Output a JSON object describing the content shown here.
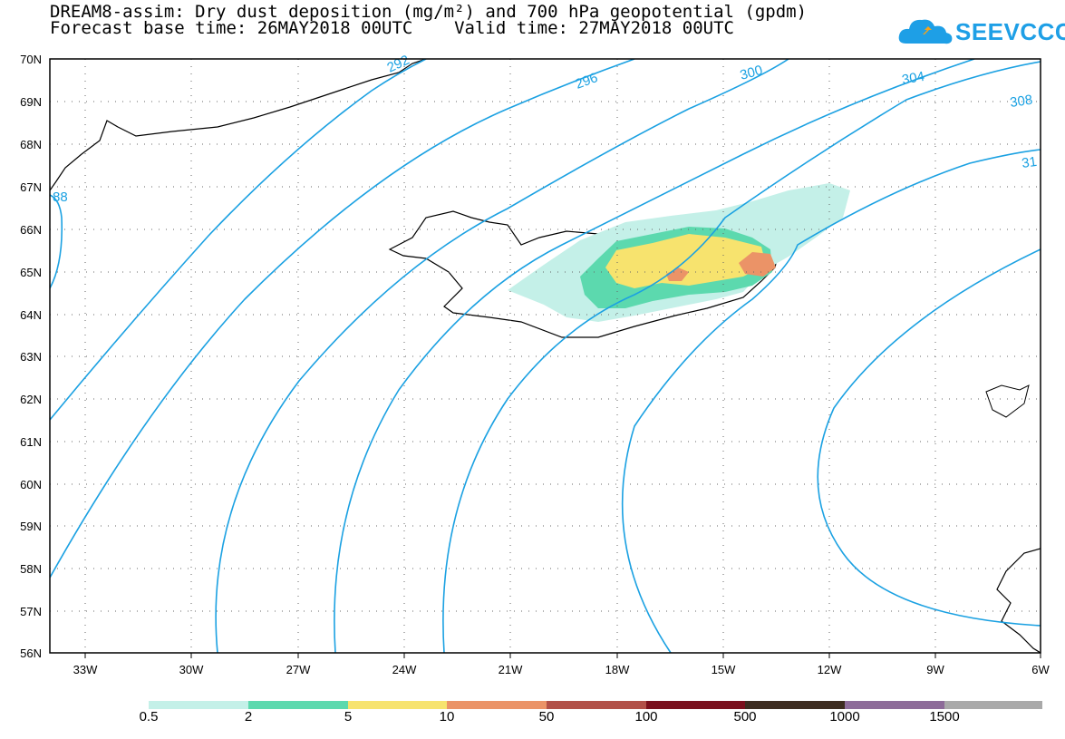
{
  "header": {
    "title_line1": "DREAM8-assim: Dry dust deposition (mg/m²) and 700 hPa geopotential (gpdm)",
    "title_line2": "Forecast base time: 26MAY2018 00UTC    Valid time: 27MAY2018 00UTC",
    "logo_text": "SEEVCCC"
  },
  "map": {
    "lat_labels": [
      "70N",
      "69N",
      "68N",
      "67N",
      "66N",
      "65N",
      "64N",
      "63N",
      "62N",
      "61N",
      "60N",
      "59N",
      "58N",
      "57N",
      "56N"
    ],
    "lon_labels": [
      "33W",
      "30W",
      "27W",
      "24W",
      "21W",
      "18W",
      "15W",
      "12W",
      "9W",
      "6W"
    ],
    "contour_labels": [
      "292",
      "296",
      "300",
      "304",
      "308",
      "31",
      "88"
    ],
    "contour_color": "#1ba1e2"
  },
  "colorbar": {
    "labels": [
      "0.5",
      "2",
      "5",
      "10",
      "50",
      "100",
      "500",
      "1000",
      "1500"
    ],
    "colors": [
      "#c4f0e8",
      "#5cd9ae",
      "#f7e36e",
      "#eb9367",
      "#b25048",
      "#7a0f1c",
      "#3c2b1f",
      "#8d6b99",
      "#a9a9a9"
    ]
  }
}
